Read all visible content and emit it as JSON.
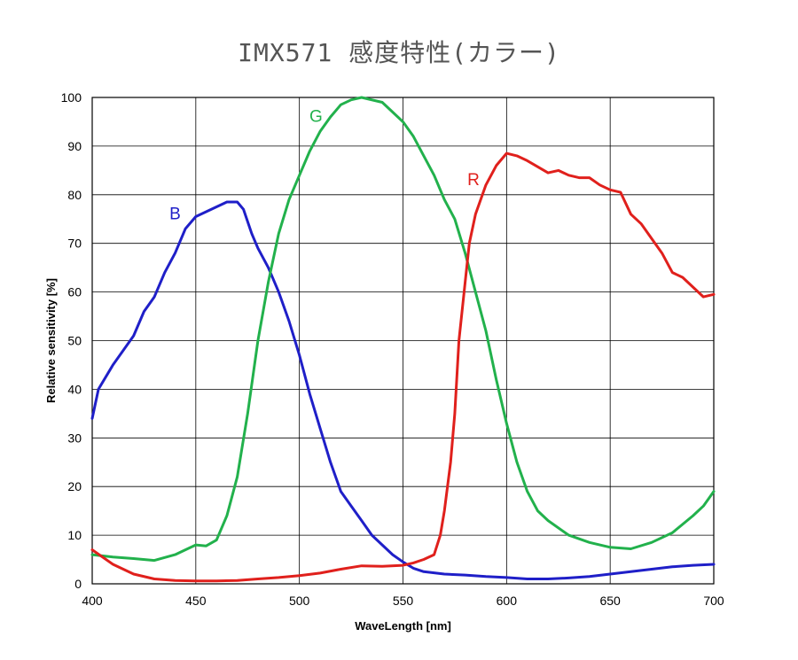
{
  "chart_data": {
    "type": "line",
    "title": "IMX571 感度特性(カラー)",
    "xlabel": "WaveLength [nm]",
    "ylabel": "Relative sensitivity [%]",
    "xlim": [
      400,
      700
    ],
    "ylim": [
      0,
      100
    ],
    "xticks": [
      400,
      450,
      500,
      550,
      600,
      650,
      700
    ],
    "yticks": [
      0,
      10,
      20,
      30,
      40,
      50,
      60,
      70,
      80,
      90,
      100
    ],
    "grid": true,
    "legend": "none",
    "series": [
      {
        "name": "B",
        "color": "#1f1fc8",
        "label_at": [
          440,
          75
        ],
        "points": [
          [
            400,
            34
          ],
          [
            403,
            40
          ],
          [
            410,
            45
          ],
          [
            420,
            51
          ],
          [
            425,
            56
          ],
          [
            430,
            59
          ],
          [
            435,
            64
          ],
          [
            440,
            68
          ],
          [
            445,
            73
          ],
          [
            450,
            75.5
          ],
          [
            455,
            76.5
          ],
          [
            460,
            77.5
          ],
          [
            465,
            78.5
          ],
          [
            470,
            78.5
          ],
          [
            473,
            77
          ],
          [
            477,
            72
          ],
          [
            480,
            69
          ],
          [
            485,
            65
          ],
          [
            490,
            60
          ],
          [
            495,
            54
          ],
          [
            500,
            47
          ],
          [
            505,
            39
          ],
          [
            510,
            32
          ],
          [
            515,
            25
          ],
          [
            520,
            19
          ],
          [
            525,
            16
          ],
          [
            530,
            13
          ],
          [
            535,
            10
          ],
          [
            540,
            8
          ],
          [
            545,
            6
          ],
          [
            550,
            4.5
          ],
          [
            555,
            3.2
          ],
          [
            560,
            2.5
          ],
          [
            570,
            2
          ],
          [
            580,
            1.8
          ],
          [
            590,
            1.5
          ],
          [
            600,
            1.3
          ],
          [
            610,
            1
          ],
          [
            620,
            1
          ],
          [
            630,
            1.2
          ],
          [
            640,
            1.5
          ],
          [
            650,
            2
          ],
          [
            660,
            2.5
          ],
          [
            670,
            3
          ],
          [
            680,
            3.5
          ],
          [
            690,
            3.8
          ],
          [
            700,
            4
          ]
        ]
      },
      {
        "name": "G",
        "color": "#22b14c",
        "label_at": [
          508,
          95
        ],
        "points": [
          [
            400,
            6
          ],
          [
            410,
            5.5
          ],
          [
            420,
            5.2
          ],
          [
            430,
            4.8
          ],
          [
            440,
            6
          ],
          [
            445,
            7
          ],
          [
            450,
            8
          ],
          [
            455,
            7.8
          ],
          [
            460,
            9
          ],
          [
            465,
            14
          ],
          [
            470,
            22
          ],
          [
            475,
            35
          ],
          [
            480,
            50
          ],
          [
            485,
            62
          ],
          [
            490,
            72
          ],
          [
            495,
            79
          ],
          [
            500,
            84
          ],
          [
            505,
            89
          ],
          [
            510,
            93
          ],
          [
            515,
            96
          ],
          [
            520,
            98.5
          ],
          [
            525,
            99.5
          ],
          [
            530,
            100
          ],
          [
            540,
            99
          ],
          [
            545,
            97
          ],
          [
            550,
            95
          ],
          [
            555,
            92
          ],
          [
            560,
            88
          ],
          [
            565,
            84
          ],
          [
            570,
            79
          ],
          [
            575,
            75
          ],
          [
            580,
            68
          ],
          [
            585,
            60
          ],
          [
            590,
            52
          ],
          [
            595,
            42
          ],
          [
            600,
            33
          ],
          [
            605,
            25
          ],
          [
            610,
            19
          ],
          [
            615,
            15
          ],
          [
            620,
            13
          ],
          [
            630,
            10
          ],
          [
            640,
            8.5
          ],
          [
            650,
            7.5
          ],
          [
            660,
            7.2
          ],
          [
            670,
            8.5
          ],
          [
            680,
            10.5
          ],
          [
            690,
            14
          ],
          [
            695,
            16
          ],
          [
            700,
            19
          ]
        ]
      },
      {
        "name": "R",
        "color": "#e0201c",
        "label_at": [
          584,
          82
        ],
        "points": [
          [
            400,
            7
          ],
          [
            410,
            4
          ],
          [
            420,
            2
          ],
          [
            430,
            1
          ],
          [
            440,
            0.7
          ],
          [
            450,
            0.6
          ],
          [
            460,
            0.6
          ],
          [
            470,
            0.7
          ],
          [
            480,
            1
          ],
          [
            490,
            1.3
          ],
          [
            500,
            1.7
          ],
          [
            510,
            2.2
          ],
          [
            520,
            3
          ],
          [
            530,
            3.7
          ],
          [
            540,
            3.6
          ],
          [
            550,
            3.8
          ],
          [
            555,
            4.3
          ],
          [
            560,
            5
          ],
          [
            565,
            6
          ],
          [
            568,
            10
          ],
          [
            570,
            15
          ],
          [
            573,
            25
          ],
          [
            575,
            35
          ],
          [
            577,
            50
          ],
          [
            580,
            62
          ],
          [
            582,
            70
          ],
          [
            585,
            76
          ],
          [
            590,
            82
          ],
          [
            595,
            86
          ],
          [
            600,
            88.5
          ],
          [
            605,
            88
          ],
          [
            610,
            87
          ],
          [
            620,
            84.5
          ],
          [
            625,
            85
          ],
          [
            630,
            84
          ],
          [
            635,
            83.5
          ],
          [
            640,
            83.5
          ],
          [
            645,
            82
          ],
          [
            650,
            81
          ],
          [
            655,
            80.5
          ],
          [
            660,
            76
          ],
          [
            665,
            74
          ],
          [
            670,
            71
          ],
          [
            675,
            68
          ],
          [
            680,
            64
          ],
          [
            685,
            63
          ],
          [
            690,
            61
          ],
          [
            695,
            59
          ],
          [
            700,
            59.5
          ]
        ]
      }
    ]
  }
}
